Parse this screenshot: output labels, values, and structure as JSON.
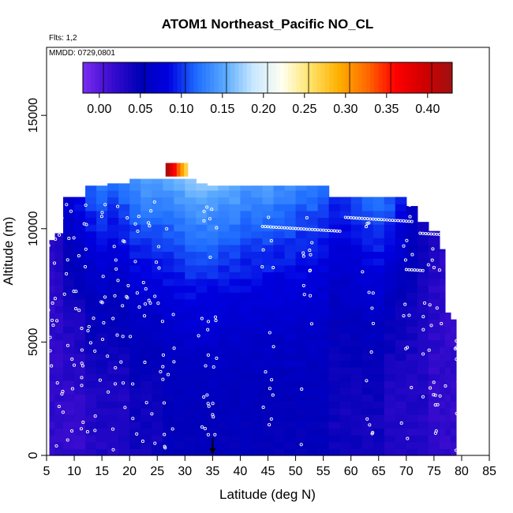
{
  "chart_data": {
    "type": "heatmap",
    "title": "ATOM1 Northeast_Pacific NO_CL",
    "annotations": {
      "flights": "Flts: 1,2",
      "dates": "MMDD: 0729,0801"
    },
    "xlabel": "Latitude (deg N)",
    "ylabel": "Altitude (m)",
    "xlim": [
      5,
      85
    ],
    "ylim": [
      0,
      18000
    ],
    "x_ticks": [
      5,
      10,
      15,
      20,
      25,
      30,
      35,
      40,
      45,
      50,
      55,
      60,
      65,
      70,
      75,
      80,
      85
    ],
    "y_ticks": [
      0,
      5000,
      10000,
      15000
    ],
    "colorbar": {
      "min": -0.02,
      "max": 0.43,
      "ticks": [
        0.0,
        0.05,
        0.1,
        0.15,
        0.2,
        0.25,
        0.3,
        0.35,
        0.4
      ],
      "tick_labels": [
        "0.00",
        "0.05",
        "0.10",
        "0.15",
        "0.20",
        "0.25",
        "0.30",
        "0.35",
        "0.40"
      ],
      "colors": [
        "#7b2cf0",
        "#3a0ccf",
        "#0000b8",
        "#0000e0",
        "#1e6cff",
        "#5aaaff",
        "#c8e8ff",
        "#fffff0",
        "#ffe36a",
        "#ffb000",
        "#ff6a00",
        "#ff0000",
        "#d00000",
        "#a01010"
      ]
    },
    "marker": {
      "latitude": 35,
      "altitude": 0
    },
    "columns": [
      {
        "lat0": 5.5,
        "lat1": 6.5,
        "top": 9500,
        "base": 0.02,
        "upper": 0.03
      },
      {
        "lat0": 6.5,
        "lat1": 8.0,
        "top": 9800,
        "base": 0.02,
        "upper": 0.04
      },
      {
        "lat0": 8.0,
        "lat1": 10.0,
        "top": 11400,
        "base": 0.02,
        "upper": 0.08
      },
      {
        "lat0": 10.0,
        "lat1": 12.0,
        "top": 11400,
        "base": 0.02,
        "upper": 0.1
      },
      {
        "lat0": 12.0,
        "lat1": 14.0,
        "top": 11900,
        "base": 0.03,
        "upper": 0.12
      },
      {
        "lat0": 14.0,
        "lat1": 16.0,
        "top": 11900,
        "base": 0.03,
        "upper": 0.13
      },
      {
        "lat0": 16.0,
        "lat1": 18.0,
        "top": 12000,
        "base": 0.03,
        "upper": 0.12
      },
      {
        "lat0": 18.0,
        "lat1": 20.0,
        "top": 12000,
        "base": 0.03,
        "upper": 0.13
      },
      {
        "lat0": 20.0,
        "lat1": 22.0,
        "top": 12200,
        "base": 0.04,
        "upper": 0.14
      },
      {
        "lat0": 22.0,
        "lat1": 24.0,
        "top": 12200,
        "base": 0.04,
        "upper": 0.15
      },
      {
        "lat0": 24.0,
        "lat1": 26.0,
        "top": 12200,
        "base": 0.04,
        "upper": 0.15
      },
      {
        "lat0": 26.0,
        "lat1": 28.0,
        "top": 12200,
        "base": 0.05,
        "upper": 0.15
      },
      {
        "lat0": 28.0,
        "lat1": 30.0,
        "top": 12200,
        "base": 0.05,
        "upper": 0.16
      },
      {
        "lat0": 30.0,
        "lat1": 32.0,
        "top": 12200,
        "base": 0.05,
        "upper": 0.17
      },
      {
        "lat0": 32.0,
        "lat1": 34.0,
        "top": 12000,
        "base": 0.05,
        "upper": 0.17
      },
      {
        "lat0": 34.0,
        "lat1": 36.0,
        "top": 11900,
        "base": 0.05,
        "upper": 0.17
      },
      {
        "lat0": 36.0,
        "lat1": 38.0,
        "top": 11900,
        "base": 0.05,
        "upper": 0.16
      },
      {
        "lat0": 38.0,
        "lat1": 40.0,
        "top": 11900,
        "base": 0.05,
        "upper": 0.16
      },
      {
        "lat0": 40.0,
        "lat1": 42.0,
        "top": 11900,
        "base": 0.05,
        "upper": 0.15
      },
      {
        "lat0": 42.0,
        "lat1": 44.0,
        "top": 11900,
        "base": 0.05,
        "upper": 0.15
      },
      {
        "lat0": 44.0,
        "lat1": 46.0,
        "top": 11900,
        "base": 0.05,
        "upper": 0.15
      },
      {
        "lat0": 46.0,
        "lat1": 48.0,
        "top": 11900,
        "base": 0.05,
        "upper": 0.14
      },
      {
        "lat0": 48.0,
        "lat1": 50.0,
        "top": 11900,
        "base": 0.05,
        "upper": 0.14
      },
      {
        "lat0": 50.0,
        "lat1": 52.0,
        "top": 11900,
        "base": 0.05,
        "upper": 0.13
      },
      {
        "lat0": 52.0,
        "lat1": 54.0,
        "top": 11900,
        "base": 0.05,
        "upper": 0.13
      },
      {
        "lat0": 54.0,
        "lat1": 56.0,
        "top": 11900,
        "base": 0.05,
        "upper": 0.12
      },
      {
        "lat0": 56.0,
        "lat1": 58.0,
        "top": 11400,
        "base": 0.04,
        "upper": 0.11
      },
      {
        "lat0": 58.0,
        "lat1": 60.0,
        "top": 11400,
        "base": 0.04,
        "upper": 0.11
      },
      {
        "lat0": 60.0,
        "lat1": 62.0,
        "top": 11400,
        "base": 0.04,
        "upper": 0.12
      },
      {
        "lat0": 62.0,
        "lat1": 64.0,
        "top": 11400,
        "base": 0.04,
        "upper": 0.13
      },
      {
        "lat0": 64.0,
        "lat1": 66.0,
        "top": 11400,
        "base": 0.04,
        "upper": 0.14
      },
      {
        "lat0": 66.0,
        "lat1": 68.0,
        "top": 11400,
        "base": 0.03,
        "upper": 0.13
      },
      {
        "lat0": 68.0,
        "lat1": 70.0,
        "top": 11400,
        "base": 0.03,
        "upper": 0.1
      },
      {
        "lat0": 70.0,
        "lat1": 72.0,
        "top": 11000,
        "base": 0.03,
        "upper": 0.07
      },
      {
        "lat0": 72.0,
        "lat1": 74.0,
        "top": 10300,
        "base": 0.03,
        "upper": 0.05
      },
      {
        "lat0": 74.0,
        "lat1": 76.0,
        "top": 9900,
        "base": 0.02,
        "upper": 0.04
      },
      {
        "lat0": 76.0,
        "lat1": 77.0,
        "top": 9100,
        "base": 0.02,
        "upper": 0.03
      },
      {
        "lat0": 77.0,
        "lat1": 78.0,
        "top": 6300,
        "base": 0.02,
        "upper": 0.02
      },
      {
        "lat0": 78.0,
        "lat1": 79.0,
        "top": 6000,
        "base": 0.02,
        "upper": 0.02
      }
    ],
    "hotspot": {
      "lat0": 26.5,
      "lat1": 30.5,
      "alt0": 12300,
      "alt1": 12900,
      "value": 0.42
    }
  }
}
